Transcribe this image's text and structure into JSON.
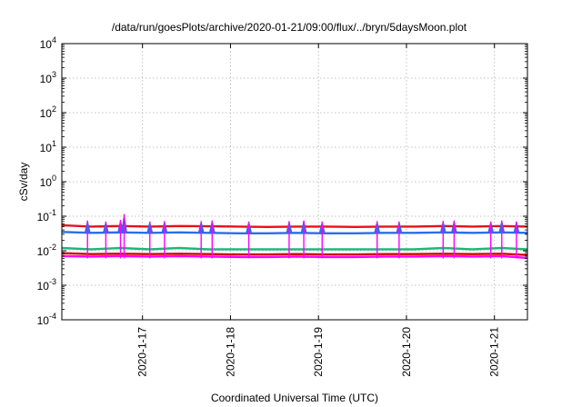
{
  "chart_data": {
    "type": "line",
    "title": "/data/run/goesPlots/archive/2020-01-21/09:00/flux/../bryn/5daysMoon.plot",
    "xlabel": "Coordinated Universal Time (UTC)",
    "ylabel": "cSv/day",
    "x_range": [
      "2020-01-16T02:00",
      "2020-01-21T09:00"
    ],
    "ylim": [
      0.0001,
      10000
    ],
    "yscale": "log",
    "grid": true,
    "legend": "none",
    "x_ticks": [
      {
        "date": "2020-01-17T00:00",
        "label": "2020-1-17"
      },
      {
        "date": "2020-01-18T00:00",
        "label": "2020-1-18"
      },
      {
        "date": "2020-01-19T00:00",
        "label": "2020-1-19"
      },
      {
        "date": "2020-01-20T00:00",
        "label": "2020-1-20"
      },
      {
        "date": "2020-01-21T00:00",
        "label": "2020-1-21"
      }
    ],
    "y_ticks": [
      {
        "value": 10000,
        "base": "10",
        "exp": "4"
      },
      {
        "value": 1000,
        "base": "10",
        "exp": "3"
      },
      {
        "value": 100,
        "base": "10",
        "exp": "2"
      },
      {
        "value": 10,
        "base": "10",
        "exp": "1"
      },
      {
        "value": 1,
        "base": "10",
        "exp": "0"
      },
      {
        "value": 0.1,
        "base": "10",
        "exp": "-1"
      },
      {
        "value": 0.01,
        "base": "10",
        "exp": "-2"
      },
      {
        "value": 0.001,
        "base": "10",
        "exp": "-3"
      },
      {
        "value": 0.0001,
        "base": "10",
        "exp": "-4"
      }
    ],
    "series": [
      {
        "color": "#e8101a",
        "values": [
          [
            "2020-01-16T02:00",
            0.055
          ],
          [
            "2020-01-16T10:00",
            0.05
          ],
          [
            "2020-01-16T18:00",
            0.052
          ],
          [
            "2020-01-17T02:00",
            0.05
          ],
          [
            "2020-01-17T10:00",
            0.052
          ],
          [
            "2020-01-17T18:00",
            0.051
          ],
          [
            "2020-01-18T02:00",
            0.05
          ],
          [
            "2020-01-18T10:00",
            0.049
          ],
          [
            "2020-01-18T18:00",
            0.05
          ],
          [
            "2020-01-19T02:00",
            0.05
          ],
          [
            "2020-01-19T10:00",
            0.049
          ],
          [
            "2020-01-19T18:00",
            0.05
          ],
          [
            "2020-01-20T02:00",
            0.05
          ],
          [
            "2020-01-20T10:00",
            0.052
          ],
          [
            "2020-01-20T18:00",
            0.05
          ],
          [
            "2020-01-21T02:00",
            0.052
          ],
          [
            "2020-01-21T09:00",
            0.05
          ]
        ]
      },
      {
        "color": "#2b6de8",
        "values": [
          [
            "2020-01-16T02:00",
            0.035
          ],
          [
            "2020-01-16T10:00",
            0.033
          ],
          [
            "2020-01-16T18:00",
            0.034
          ],
          [
            "2020-01-17T02:00",
            0.033
          ],
          [
            "2020-01-17T10:00",
            0.034
          ],
          [
            "2020-01-17T18:00",
            0.033
          ],
          [
            "2020-01-18T02:00",
            0.032
          ],
          [
            "2020-01-18T10:00",
            0.032
          ],
          [
            "2020-01-18T18:00",
            0.033
          ],
          [
            "2020-01-19T02:00",
            0.032
          ],
          [
            "2020-01-19T10:00",
            0.032
          ],
          [
            "2020-01-19T18:00",
            0.033
          ],
          [
            "2020-01-20T02:00",
            0.033
          ],
          [
            "2020-01-20T10:00",
            0.034
          ],
          [
            "2020-01-20T18:00",
            0.033
          ],
          [
            "2020-01-21T02:00",
            0.034
          ],
          [
            "2020-01-21T09:00",
            0.033
          ]
        ]
      },
      {
        "color": "#18b87a",
        "values": [
          [
            "2020-01-16T02:00",
            0.012
          ],
          [
            "2020-01-16T10:00",
            0.011
          ],
          [
            "2020-01-16T18:00",
            0.012
          ],
          [
            "2020-01-17T02:00",
            0.011
          ],
          [
            "2020-01-17T10:00",
            0.012
          ],
          [
            "2020-01-17T18:00",
            0.011
          ],
          [
            "2020-01-18T02:00",
            0.011
          ],
          [
            "2020-01-18T10:00",
            0.011
          ],
          [
            "2020-01-18T18:00",
            0.011
          ],
          [
            "2020-01-19T02:00",
            0.011
          ],
          [
            "2020-01-19T10:00",
            0.011
          ],
          [
            "2020-01-19T18:00",
            0.011
          ],
          [
            "2020-01-20T02:00",
            0.011
          ],
          [
            "2020-01-20T10:00",
            0.012
          ],
          [
            "2020-01-20T18:00",
            0.011
          ],
          [
            "2020-01-21T02:00",
            0.012
          ],
          [
            "2020-01-21T09:00",
            0.011
          ]
        ]
      },
      {
        "color": "#d40000",
        "values": [
          [
            "2020-01-16T02:00",
            0.0085
          ],
          [
            "2020-01-16T10:00",
            0.008
          ],
          [
            "2020-01-16T18:00",
            0.0082
          ],
          [
            "2020-01-17T02:00",
            0.008
          ],
          [
            "2020-01-17T10:00",
            0.0082
          ],
          [
            "2020-01-17T18:00",
            0.008
          ],
          [
            "2020-01-18T02:00",
            0.0078
          ],
          [
            "2020-01-18T10:00",
            0.0078
          ],
          [
            "2020-01-18T18:00",
            0.008
          ],
          [
            "2020-01-19T02:00",
            0.0078
          ],
          [
            "2020-01-19T10:00",
            0.0078
          ],
          [
            "2020-01-19T18:00",
            0.008
          ],
          [
            "2020-01-20T02:00",
            0.008
          ],
          [
            "2020-01-20T10:00",
            0.0082
          ],
          [
            "2020-01-20T18:00",
            0.008
          ],
          [
            "2020-01-21T02:00",
            0.0082
          ],
          [
            "2020-01-21T09:00",
            0.0075
          ]
        ]
      },
      {
        "color": "#ff00ff",
        "values": [
          [
            "2020-01-16T02:00",
            0.007
          ],
          [
            "2020-01-16T10:00",
            0.0068
          ],
          [
            "2020-01-16T18:00",
            0.007
          ],
          [
            "2020-01-17T02:00",
            0.0068
          ],
          [
            "2020-01-17T10:00",
            0.007
          ],
          [
            "2020-01-17T18:00",
            0.0068
          ],
          [
            "2020-01-18T02:00",
            0.0066
          ],
          [
            "2020-01-18T10:00",
            0.0066
          ],
          [
            "2020-01-18T18:00",
            0.0068
          ],
          [
            "2020-01-19T02:00",
            0.0066
          ],
          [
            "2020-01-19T10:00",
            0.0066
          ],
          [
            "2020-01-19T18:00",
            0.0068
          ],
          [
            "2020-01-20T02:00",
            0.0068
          ],
          [
            "2020-01-20T10:00",
            0.007
          ],
          [
            "2020-01-20T18:00",
            0.0068
          ],
          [
            "2020-01-21T02:00",
            0.007
          ],
          [
            "2020-01-21T09:00",
            0.0062
          ]
        ]
      }
    ],
    "spikes": [
      [
        "2020-01-16T09:00",
        0.075
      ],
      [
        "2020-01-16T14:00",
        0.07
      ],
      [
        "2020-01-16T18:00",
        0.078
      ],
      [
        "2020-01-17T02:00",
        0.07
      ],
      [
        "2020-01-16T19:00",
        0.115
      ],
      [
        "2020-01-17T06:00",
        0.072
      ],
      [
        "2020-01-17T16:00",
        0.072
      ],
      [
        "2020-01-17T19:00",
        0.075
      ],
      [
        "2020-01-18T05:00",
        0.07
      ],
      [
        "2020-01-18T16:00",
        0.072
      ],
      [
        "2020-01-18T20:00",
        0.075
      ],
      [
        "2020-01-19T01:00",
        0.07
      ],
      [
        "2020-01-19T16:00",
        0.072
      ],
      [
        "2020-01-19T22:00",
        0.07
      ],
      [
        "2020-01-20T10:00",
        0.073
      ],
      [
        "2020-01-20T13:00",
        0.075
      ],
      [
        "2020-01-20T23:00",
        0.07
      ],
      [
        "2020-01-21T02:00",
        0.075
      ],
      [
        "2020-01-21T06:00",
        0.07
      ]
    ]
  }
}
